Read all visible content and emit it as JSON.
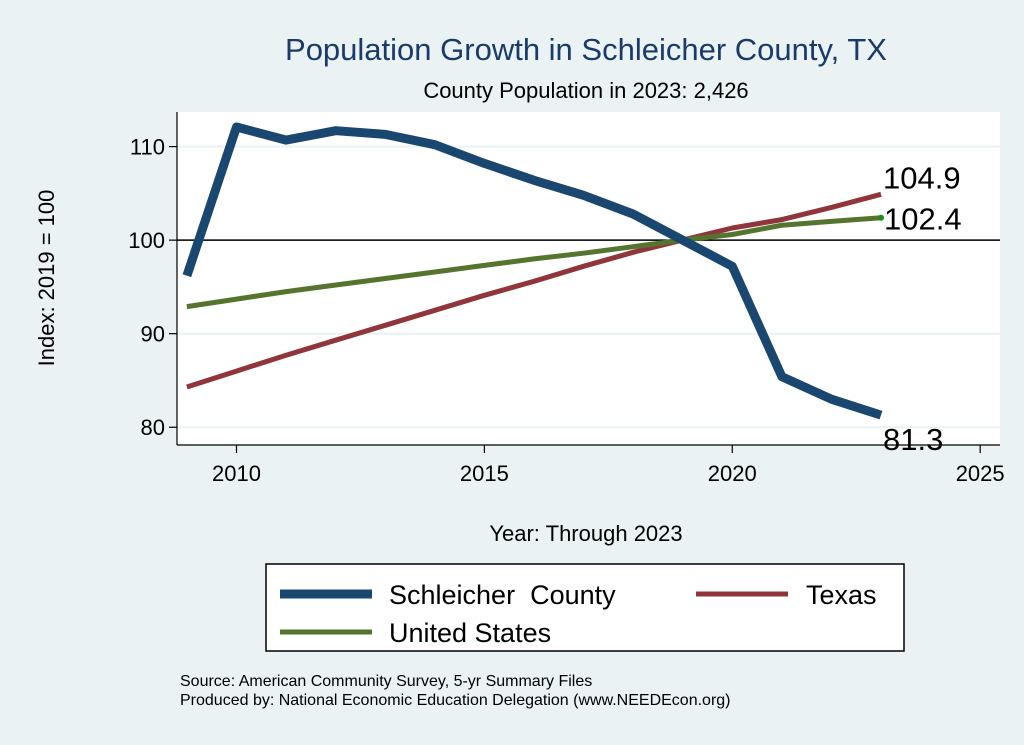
{
  "chart_data": {
    "type": "line",
    "title": "Population Growth in Schleicher County, TX",
    "subtitle": "County Population in 2023: 2,426",
    "xlabel": "Year: Through 2023",
    "ylabel": "Index: 2019 = 100",
    "xlim": [
      2008.8,
      2025.4
    ],
    "ylim": [
      78.1,
      113.7
    ],
    "xticks": [
      2010,
      2015,
      2020,
      2025
    ],
    "yticks": [
      80,
      90,
      100,
      110
    ],
    "reference_line": 100,
    "x": [
      2009,
      2010,
      2011,
      2012,
      2013,
      2014,
      2015,
      2016,
      2017,
      2018,
      2019,
      2020,
      2021,
      2022,
      2023
    ],
    "series": [
      {
        "name": "Schleicher  County",
        "color": "#1a476f",
        "width": 9,
        "values": [
          96.2,
          112.1,
          110.7,
          111.7,
          111.3,
          110.2,
          108.2,
          106.4,
          104.8,
          102.8,
          100,
          97.2,
          85.4,
          83.0,
          81.3
        ],
        "end_label": "81.3"
      },
      {
        "name": "Texas",
        "color": "#90353b",
        "width": 5,
        "values": [
          84.3,
          86.0,
          87.7,
          89.3,
          90.9,
          92.5,
          94.1,
          95.6,
          97.2,
          98.7,
          100,
          101.3,
          102.2,
          103.5,
          104.9
        ],
        "end_label": "104.9"
      },
      {
        "name": "United States",
        "color": "#55752f",
        "width": 5,
        "values": [
          92.9,
          93.7,
          94.5,
          95.2,
          95.9,
          96.6,
          97.3,
          98.0,
          98.6,
          99.3,
          100,
          100.6,
          101.6,
          102.0,
          102.4
        ],
        "end_label": "102.4"
      }
    ],
    "legend_position": "bottom",
    "notes": [
      "Source: American Community Survey, 5-yr Summary Files",
      "Produced by: National Economic Education Delegation (www.NEEDEcon.org)"
    ]
  }
}
